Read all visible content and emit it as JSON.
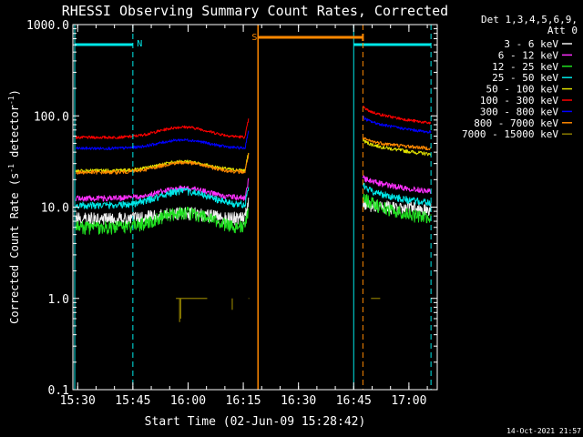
{
  "chart_data": {
    "type": "line",
    "title": "RHESSI Observing Summary Count Rates, Corrected",
    "xlabel": "Start Time (02-Jun-09 15:28:42)",
    "ylabel_parts": [
      "Corrected Count Rate (s",
      "-1",
      " detector",
      "-1",
      ")"
    ],
    "yscale": "log",
    "ylim": [
      0.1,
      1000
    ],
    "xlim_minutes": [
      0,
      99
    ],
    "x_ticks": [
      {
        "label": "15:30",
        "minute": 1.3
      },
      {
        "label": "15:45",
        "minute": 16.3
      },
      {
        "label": "16:00",
        "minute": 31.3
      },
      {
        "label": "16:15",
        "minute": 46.3
      },
      {
        "label": "16:30",
        "minute": 61.3
      },
      {
        "label": "16:45",
        "minute": 76.3
      },
      {
        "label": "17:00",
        "minute": 91.3
      }
    ],
    "y_ticks": [
      {
        "label": "1000.0",
        "value": 1000
      },
      {
        "label": "100.0",
        "value": 100
      },
      {
        "label": "10.0",
        "value": 10
      },
      {
        "label": "1.0",
        "value": 1
      },
      {
        "label": "0.1",
        "value": 0.1
      }
    ],
    "legend_header": [
      "Det 1,3,4,5,6,9,",
      "Att 0"
    ],
    "legend_position": "right",
    "series": [
      {
        "name": "3 - 6 keV",
        "color": "#f0f0f0",
        "level": 7.5,
        "hump": 0.15,
        "post_start": 11,
        "post_end": 9.5,
        "noise": 0.09
      },
      {
        "name": "6 - 12 keV",
        "color": "#ff30ff",
        "level": 12.5,
        "hump": 0.28,
        "post_start": 22,
        "post_end": 15,
        "noise": 0.04
      },
      {
        "name": "12 - 25 keV",
        "color": "#20e020",
        "level": 6.0,
        "hump": 0.45,
        "post_start": 14,
        "post_end": 7.5,
        "noise": 0.09
      },
      {
        "name": "25 - 50 keV",
        "color": "#00e8e8",
        "level": 10.5,
        "hump": 0.42,
        "post_start": 18,
        "post_end": 11,
        "noise": 0.05
      },
      {
        "name": "50 - 100 keV",
        "color": "#e0e000",
        "level": 25,
        "hump": 0.26,
        "post_start": 56,
        "post_end": 38,
        "noise": 0.025
      },
      {
        "name": "100 - 300 keV",
        "color": "#ff0000",
        "level": 58,
        "hump": 0.3,
        "post_start": 130,
        "post_end": 83,
        "noise": 0.02
      },
      {
        "name": "300 - 800 keV",
        "color": "#0000ff",
        "level": 44,
        "hump": 0.24,
        "post_start": 100,
        "post_end": 66,
        "noise": 0.02
      },
      {
        "name": "800 - 7000 keV",
        "color": "#ff8800",
        "level": 24,
        "hump": 0.28,
        "post_start": 58,
        "post_end": 44,
        "noise": 0.025
      },
      {
        "name": "7000 - 15000 keV",
        "color": "#8a7a00",
        "level": 1.0,
        "hump": 0,
        "post_start": 1.0,
        "post_end": 1.0,
        "noise": 0
      }
    ],
    "data_intervals": [
      {
        "start": 0.8,
        "end": 47.8
      },
      {
        "start": 78.8,
        "end": 97.3
      }
    ],
    "annotations": {
      "night_label": "N",
      "saa_label": "S",
      "night_bars": [
        {
          "start": 0.5,
          "end": 16.3
        },
        {
          "start": 76.3,
          "end": 97.3
        }
      ],
      "saa_bar": {
        "start": 50.3,
        "end": 78.8
      }
    },
    "grid": false
  },
  "footer": {
    "date_stamp": "14-Oct-2021 21:57"
  }
}
